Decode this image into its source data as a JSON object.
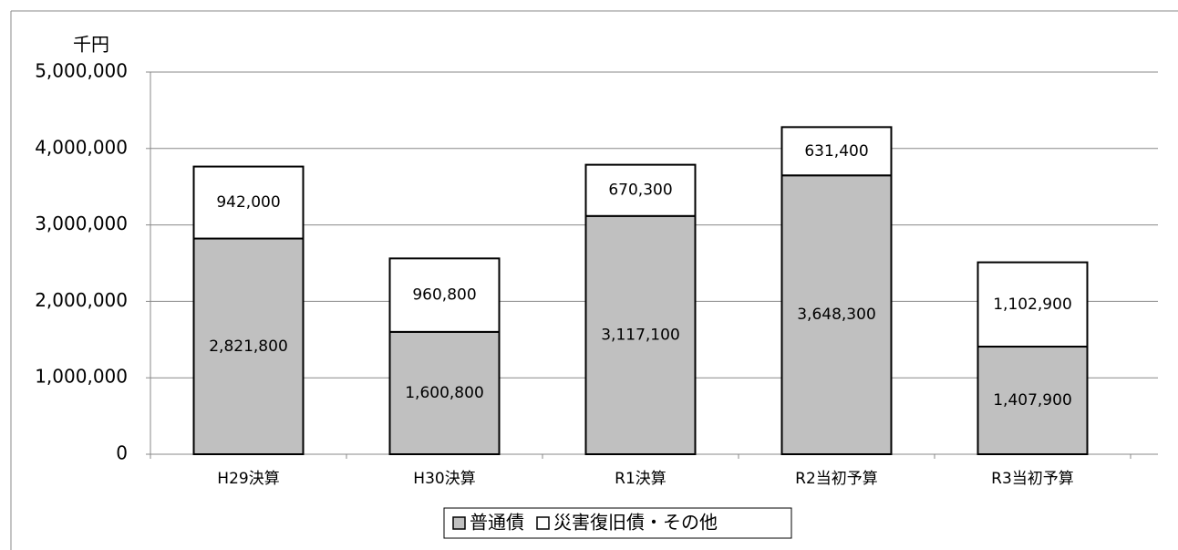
{
  "chart_data": {
    "type": "stacked_bar",
    "y_label": "千円",
    "categories": [
      "H29決算",
      "H30決算",
      "R1決算",
      "R2当初予算",
      "R3当初予算"
    ],
    "series": [
      {
        "name": "普通債",
        "color": "#c0c0c0",
        "values": [
          2821800,
          1600800,
          3117100,
          3648300,
          1407900
        ],
        "value_labels": [
          "2,821,800",
          "1,600,800",
          "3,117,100",
          "3,648,300",
          "1,407,900"
        ]
      },
      {
        "name": "災害復旧債・その他",
        "color": "#ffffff",
        "values": [
          942000,
          960800,
          670300,
          631400,
          1102900
        ],
        "value_labels": [
          "942,000",
          "960,800",
          "670,300",
          "631,400",
          "1,102,900"
        ]
      }
    ],
    "ylim": [
      0,
      5000000
    ],
    "yticks": [
      0,
      {
        "value": 1000000,
        "label": "1,000,000"
      },
      {
        "value": 2000000,
        "label": "2,000,000"
      },
      {
        "value": 3000000,
        "label": "3,000,000"
      },
      {
        "value": 4000000,
        "label": "4,000,000"
      },
      {
        "value": 5000000,
        "label": "5,000,000"
      }
    ],
    "grid": true,
    "legend": "bottom"
  }
}
